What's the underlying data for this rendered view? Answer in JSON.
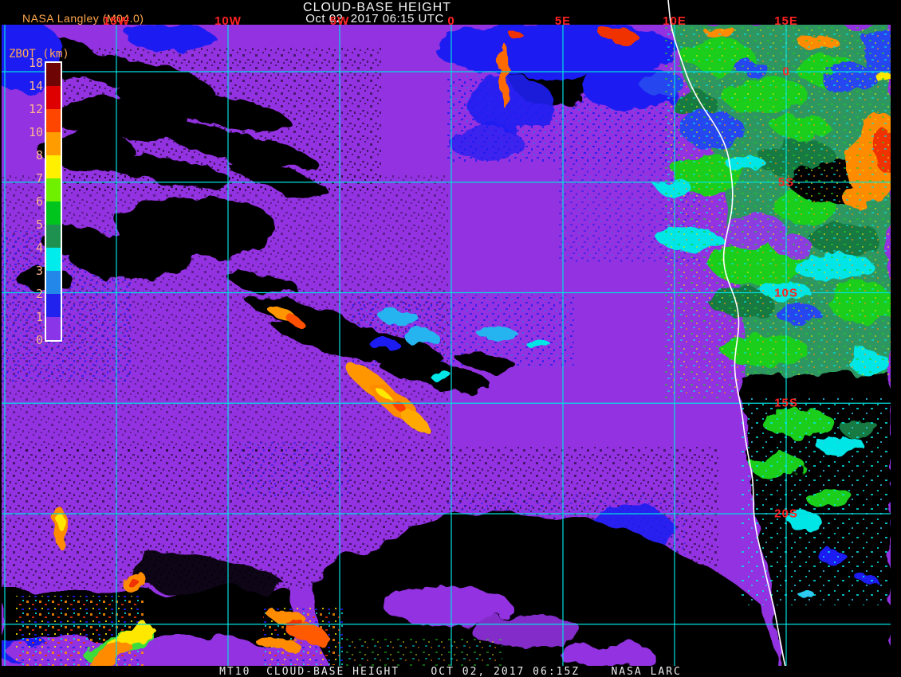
{
  "header": {
    "credit": "NASA Langley (M04.0)",
    "title": "CLOUD-BASE HEIGHT",
    "datetime": "Oct 02, 2017 06:15 UTC"
  },
  "colorbar": {
    "title": "ZBOT (km)",
    "ticks": [
      "18",
      "14",
      "12",
      "10",
      "8",
      "7",
      "6",
      "5",
      "4",
      "3",
      "2",
      "1",
      "0"
    ],
    "segment_colors_top_to_bottom": [
      "#6E0404",
      "#DE0000",
      "#FF4600",
      "#FF9C00",
      "#FFF000",
      "#6EF000",
      "#00C41E",
      "#1E9150",
      "#00ECEC",
      "#2287E8",
      "#2222EE",
      "#8A35E8"
    ],
    "tick_color": "#FFB491",
    "title_color": "#FFA850"
  },
  "grid": {
    "line_color": "#00E0E0",
    "label_color": "#FF2222",
    "lon_labels": [
      {
        "text": "15W",
        "deg": -15
      },
      {
        "text": "10W",
        "deg": -10
      },
      {
        "text": "5W",
        "deg": -5
      },
      {
        "text": "0",
        "deg": 0
      },
      {
        "text": "5E",
        "deg": 5
      },
      {
        "text": "10E",
        "deg": 10
      },
      {
        "text": "15E",
        "deg": 15
      }
    ],
    "lon_lines_deg": [
      -20,
      -15,
      -10,
      -5,
      0,
      5,
      10,
      15
    ],
    "lat_labels": [
      {
        "text": "0",
        "deg": 0
      },
      {
        "text": "5S",
        "deg": -5
      },
      {
        "text": "10S",
        "deg": -10
      },
      {
        "text": "15S",
        "deg": -15
      },
      {
        "text": "20S",
        "deg": -20
      }
    ],
    "lat_lines_deg": [
      0,
      -5,
      -10,
      -15,
      -20,
      -25
    ]
  },
  "footer": {
    "text": "MT10  CLOUD-BASE HEIGHT    OCT 02, 2017 06:15Z    NASA LARC"
  },
  "map_colors": {
    "low_cloud_purple": "#9232E0",
    "clear_black": "#000000",
    "coastline_white": "#FFFFFF"
  }
}
